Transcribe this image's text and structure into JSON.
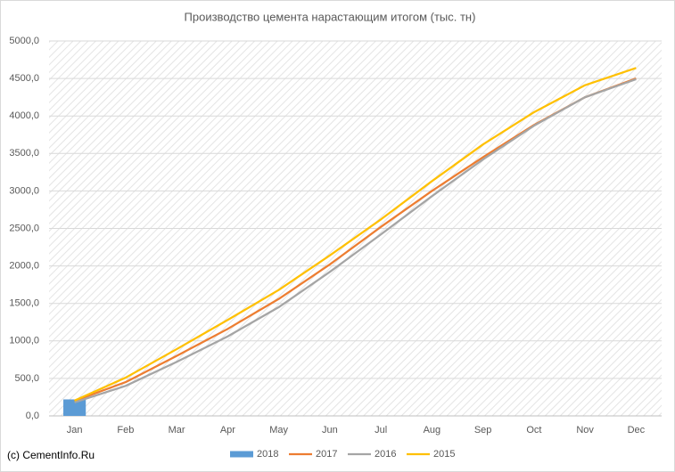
{
  "chart_data": {
    "type": "combo",
    "title": "Производство цемента нарастающим итогом (тыс. тн)",
    "source": "(c) CementInfo.Ru",
    "categories": [
      "Jan",
      "Feb",
      "Mar",
      "Apr",
      "May",
      "Jun",
      "Jul",
      "Aug",
      "Sep",
      "Oct",
      "Nov",
      "Dec"
    ],
    "series": [
      {
        "name": "2018",
        "type": "bar",
        "color": "#5b9bd5",
        "values": [
          220,
          null,
          null,
          null,
          null,
          null,
          null,
          null,
          null,
          null,
          null,
          null
        ]
      },
      {
        "name": "2017",
        "type": "line",
        "color": "#ed7d31",
        "values": [
          200,
          450,
          800,
          1160,
          1560,
          2020,
          2520,
          3000,
          3450,
          3880,
          4250,
          4500
        ]
      },
      {
        "name": "2016",
        "type": "line",
        "color": "#a5a5a5",
        "values": [
          180,
          400,
          720,
          1060,
          1450,
          1920,
          2420,
          2930,
          3420,
          3870,
          4250,
          4490
        ]
      },
      {
        "name": "2015",
        "type": "line",
        "color": "#ffc000",
        "values": [
          205,
          510,
          890,
          1280,
          1680,
          2140,
          2620,
          3130,
          3620,
          4050,
          4410,
          4640
        ]
      }
    ],
    "ylim": [
      0,
      5000
    ],
    "yticks": [
      {
        "value": 0,
        "label": "0,0"
      },
      {
        "value": 500,
        "label": "500,0"
      },
      {
        "value": 1000,
        "label": "1000,0"
      },
      {
        "value": 1500,
        "label": "1500,0"
      },
      {
        "value": 2000,
        "label": "2000,0"
      },
      {
        "value": 2500,
        "label": "2500,0"
      },
      {
        "value": 3000,
        "label": "3000,0"
      },
      {
        "value": 3500,
        "label": "3500,0"
      },
      {
        "value": 4000,
        "label": "4000,0"
      },
      {
        "value": 4500,
        "label": "4500,0"
      },
      {
        "value": 5000,
        "label": "5000,0"
      }
    ],
    "grid": true,
    "legend": "bottom"
  }
}
